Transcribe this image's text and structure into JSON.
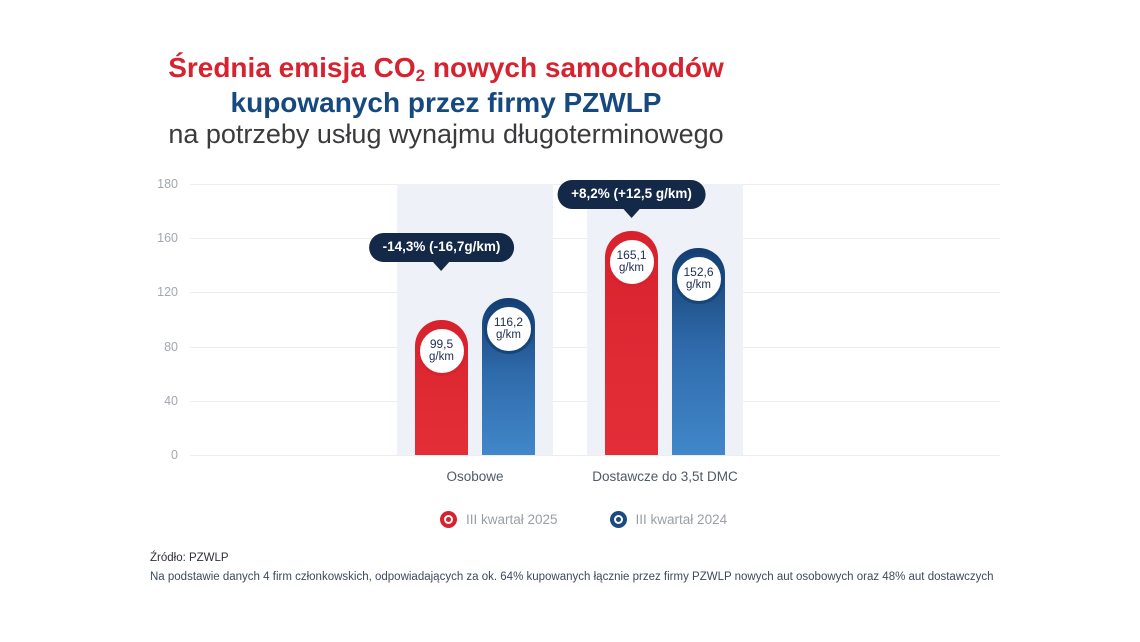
{
  "header": {
    "line1_pre": "Średnia emisja CO",
    "line1_sub": "2",
    "line1_post": " nowych samochodów",
    "line2": "kupowanych przez firmy PZWLP",
    "line3": "na potrzeby usług wynajmu długoterminowego"
  },
  "chart_data": {
    "type": "bar",
    "title": "Średnia emisja CO2 nowych samochodów kupowanych przez firmy PZWLP na potrzeby usług wynajmu długoterminowego",
    "unit": "g/km",
    "categories": [
      "Osobowe",
      "Dostawcze do 3,5t DMC"
    ],
    "series": [
      {
        "name": "III kwartał 2025",
        "color": "#d8232e",
        "values": [
          99.5,
          165.1
        ],
        "value_labels": [
          "99,5",
          "165,1"
        ]
      },
      {
        "name": "III kwartał 2024",
        "color": "#1b4b80",
        "values": [
          116.2,
          152.6
        ],
        "value_labels": [
          "116,2",
          "152,6"
        ]
      }
    ],
    "annotations": [
      {
        "category": "Osobowe",
        "text": "-14,3% (-16,7g/km)"
      },
      {
        "category": "Dostawcze do 3,5t DMC",
        "text": "+8,2% (+12,5 g/km)"
      }
    ],
    "yticks": [
      0,
      40,
      80,
      120,
      160,
      180
    ],
    "ylim": [
      0,
      200
    ],
    "grid": true,
    "legend_position": "bottom"
  },
  "footer": {
    "source": "Źródło: PZWLP",
    "note": "Na podstawie danych 4 firm członkowskich, odpowiadających za ok. 64% kupowanych łącznie przez firmy PZWLP nowych aut osobowych oraz 48% aut dostawczych"
  },
  "colors": {
    "title_red": "#d6232f",
    "title_navy": "#15497f",
    "bar_red": "#e02a34",
    "bar_blue_top": "#143d70",
    "bar_blue_bottom": "#4187ca",
    "bubble_navy": "#132947",
    "band": "#eef1f7",
    "gridline": "#eaedf2"
  }
}
